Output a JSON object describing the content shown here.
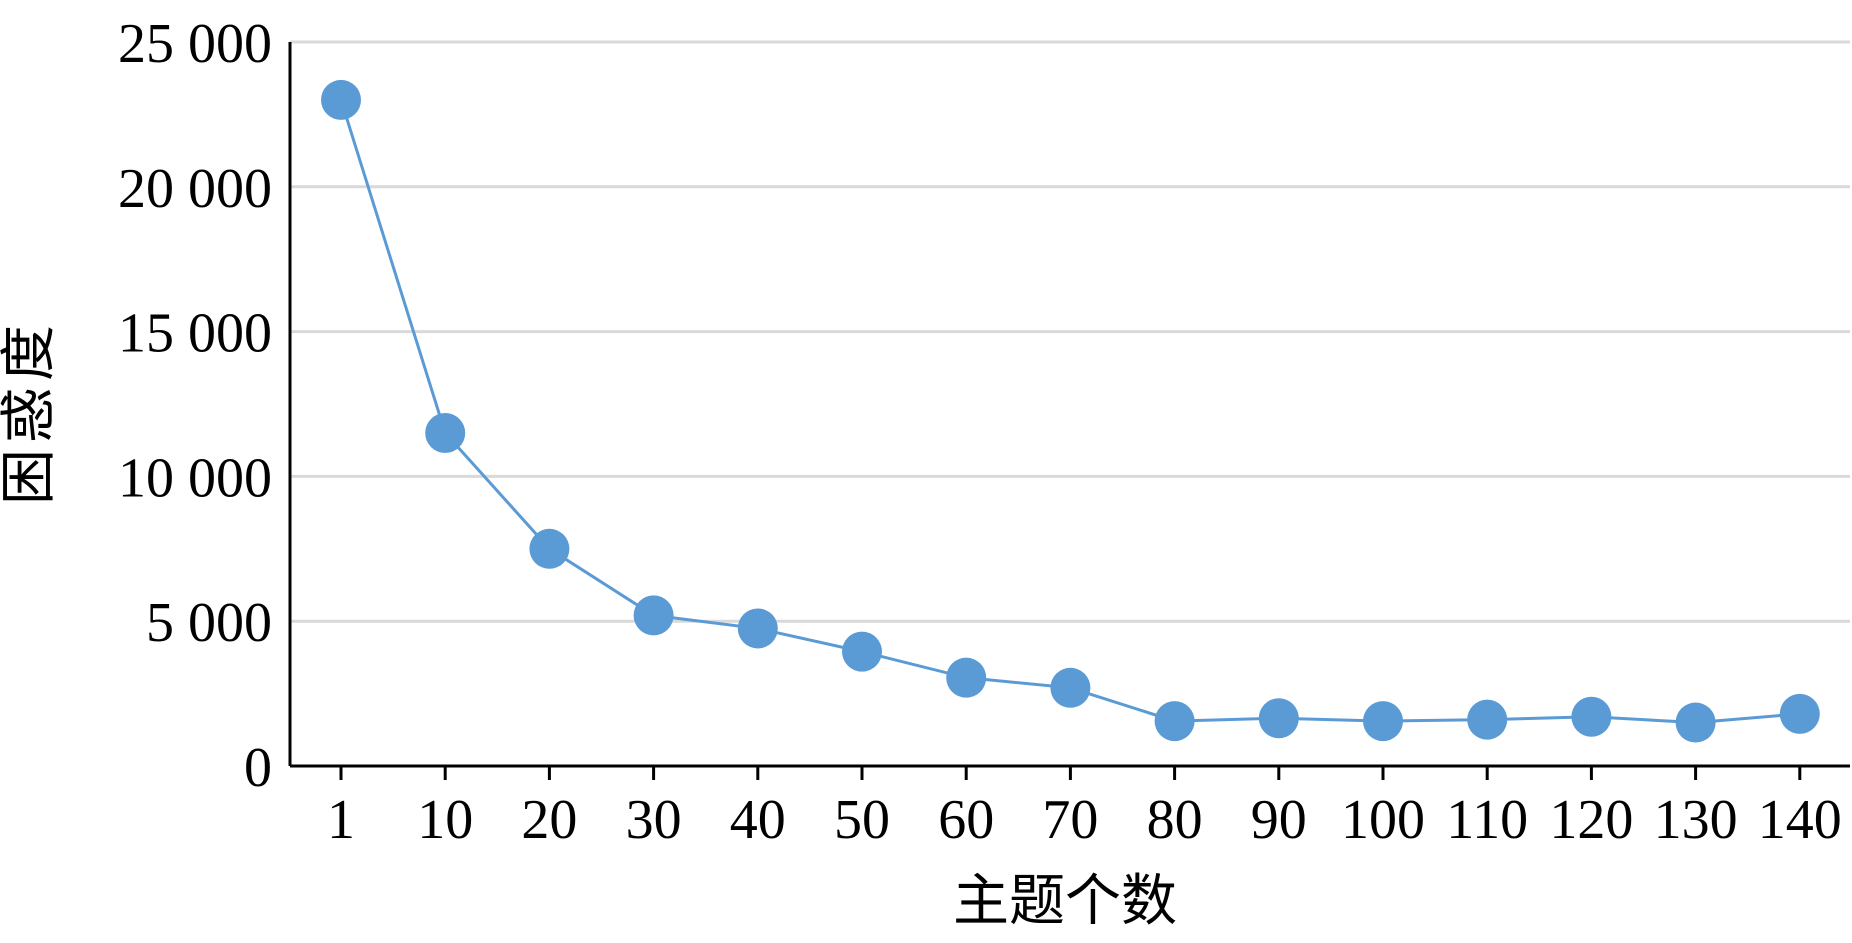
{
  "chart_data": {
    "type": "line",
    "title": "",
    "xlabel": "主题个数",
    "ylabel": "困惑度",
    "categories": [
      "1",
      "10",
      "20",
      "30",
      "40",
      "50",
      "60",
      "70",
      "80",
      "90",
      "100",
      "110",
      "120",
      "130",
      "140"
    ],
    "series": [
      {
        "values": [
          23000,
          11500,
          7500,
          5200,
          4750,
          3950,
          3050,
          2700,
          1550,
          1650,
          1550,
          1600,
          1700,
          1500,
          1800
        ],
        "color": "#5B9BD5"
      }
    ],
    "ylim": [
      0,
      25000
    ],
    "yticks": [
      {
        "value": 0,
        "label": "0"
      },
      {
        "value": 5000,
        "label": "5 000"
      },
      {
        "value": 10000,
        "label": "10 000"
      },
      {
        "value": 15000,
        "label": "15 000"
      },
      {
        "value": 20000,
        "label": "20 000"
      },
      {
        "value": 25000,
        "label": "25 000"
      }
    ],
    "grid": true,
    "legend": "none",
    "gridline_color": "#D9D9D9",
    "axis_color": "#000000"
  }
}
